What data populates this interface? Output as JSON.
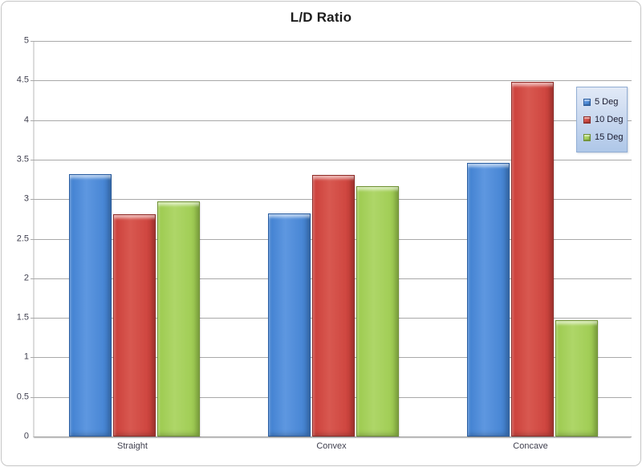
{
  "chart_data": {
    "type": "bar",
    "title": "L/D Ratio",
    "xlabel": "",
    "ylabel": "",
    "categories": [
      "Straight",
      "Convex",
      "Concave"
    ],
    "series": [
      {
        "name": "5 Deg",
        "color": "#4080d0",
        "color_light": "#5e97e0",
        "border": "#2a5da0",
        "values": [
          3.32,
          2.82,
          3.46
        ]
      },
      {
        "name": "10 Deg",
        "color": "#cb3f39",
        "color_light": "#d85850",
        "border": "#8e2b27",
        "values": [
          2.81,
          3.31,
          4.48
        ]
      },
      {
        "name": "15 Deg",
        "color": "#9cca4e",
        "color_light": "#aed668",
        "border": "#6f9133",
        "values": [
          2.97,
          3.16,
          1.47
        ]
      }
    ],
    "ylim": [
      0,
      5
    ],
    "ytick_step": 0.5,
    "grid": true,
    "legend_position": "right-overlay"
  }
}
